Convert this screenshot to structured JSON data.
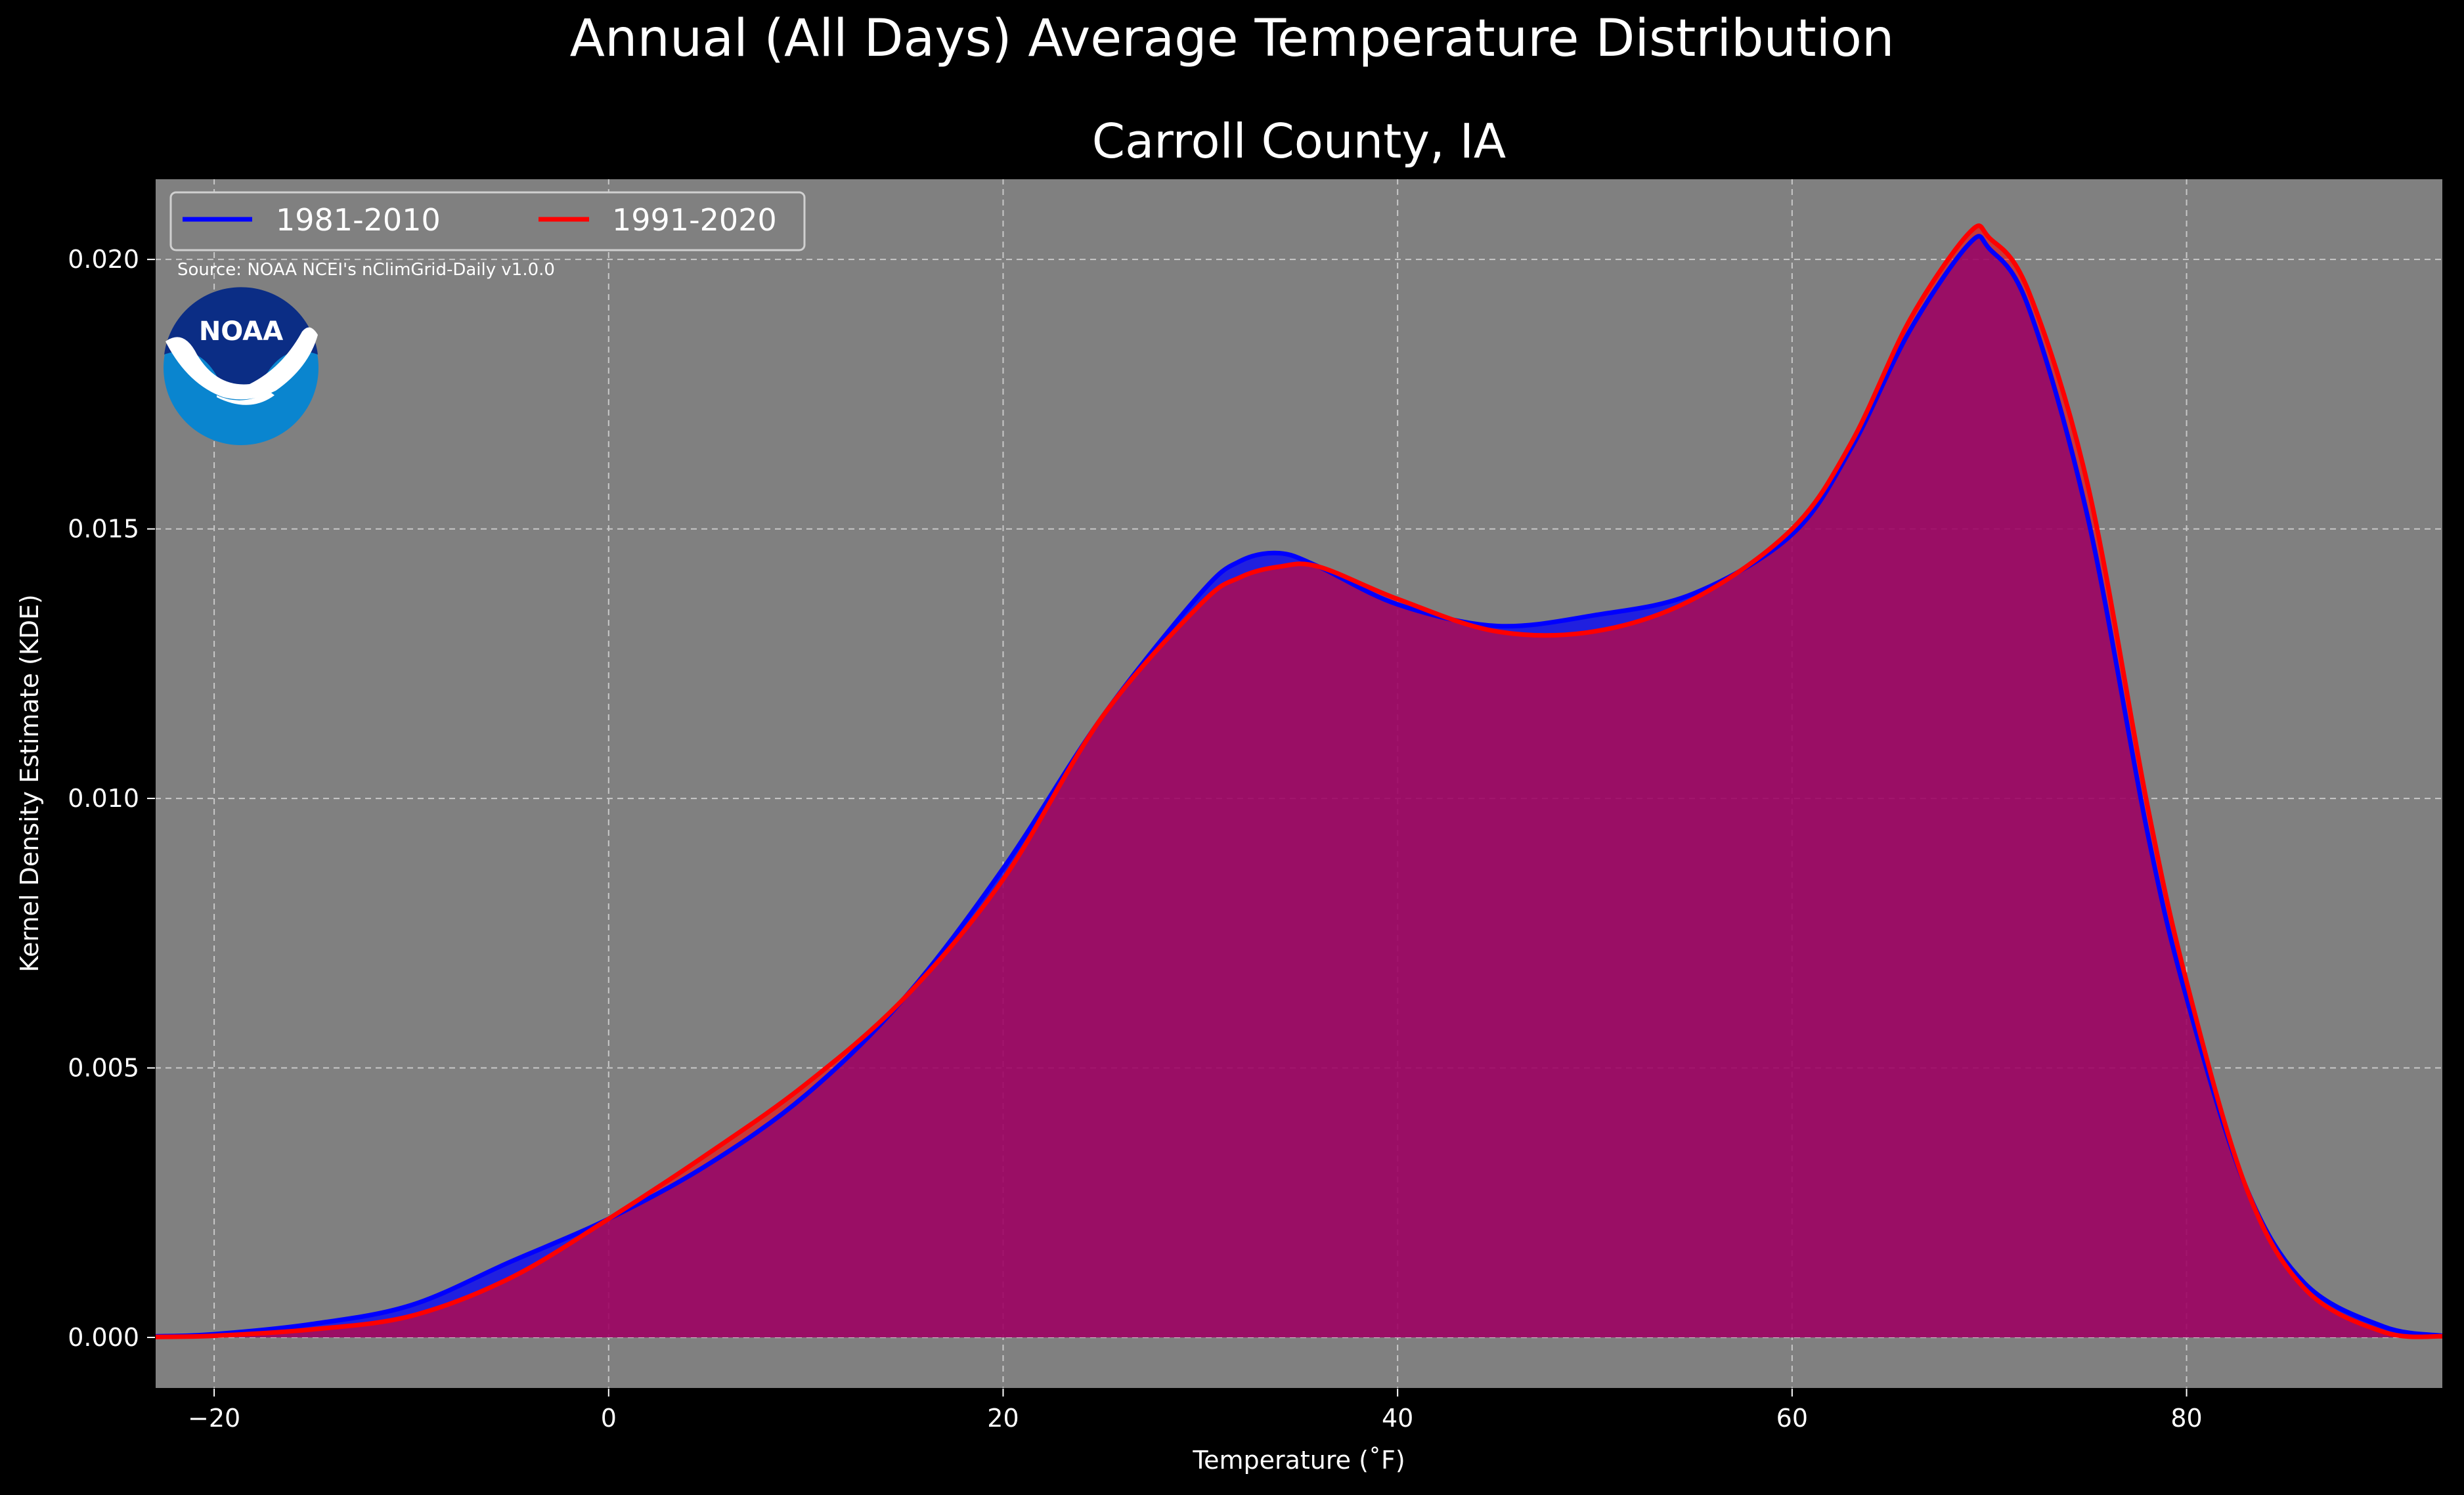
{
  "figure": {
    "title": "Annual (All Days) Average Temperature Distribution"
  },
  "chart_data": {
    "type": "area",
    "title": "Carroll County, IA",
    "xlabel": "Temperature (˚F)",
    "ylabel": "Kernel Density Estimate (KDE)",
    "xlim": [
      -23,
      93
    ],
    "ylim": [
      -0.00095,
      0.0215
    ],
    "xticks": [
      -20,
      0,
      20,
      40,
      60,
      80
    ],
    "xtick_labels": [
      "−20",
      "0",
      "20",
      "40",
      "60",
      "80"
    ],
    "yticks": [
      0.0,
      0.005,
      0.01,
      0.015,
      0.02
    ],
    "ytick_labels": [
      "0.000",
      "0.005",
      "0.010",
      "0.015",
      "0.020"
    ],
    "grid": true,
    "legend_position": "top-left",
    "annotation": "Source: NOAA NCEI's nClimGrid-Daily v1.0.0",
    "colors": {
      "figure_bg": "#000000",
      "axes_bg": "#808080",
      "overlap_fill": "#9e1f5d"
    },
    "series": [
      {
        "name": "1981-2010",
        "color": "#0000ff",
        "x": [
          -23,
          -20,
          -15,
          -10,
          -5,
          0,
          5,
          10,
          15,
          20,
          25,
          30,
          32,
          34,
          36,
          40,
          45,
          50,
          55,
          60,
          63,
          66,
          69,
          70,
          72,
          75,
          78,
          80,
          83,
          86,
          90,
          93
        ],
        "y": [
          2e-05,
          6e-05,
          0.00025,
          0.0006,
          0.0014,
          0.0022,
          0.0032,
          0.0045,
          0.0063,
          0.0087,
          0.0115,
          0.0138,
          0.0144,
          0.01455,
          0.0143,
          0.0136,
          0.0132,
          0.0134,
          0.0138,
          0.0149,
          0.0165,
          0.0187,
          0.0203,
          0.0202,
          0.0191,
          0.0152,
          0.0094,
          0.0063,
          0.0028,
          0.001,
          0.0002,
          3e-05
        ]
      },
      {
        "name": "1991-2020",
        "color": "#ff0000",
        "x": [
          -23,
          -20,
          -15,
          -10,
          -5,
          0,
          5,
          10,
          15,
          20,
          25,
          30,
          32,
          34,
          36,
          40,
          45,
          50,
          55,
          60,
          63,
          66,
          69,
          70,
          72,
          75,
          78,
          80,
          83,
          86,
          90,
          93
        ],
        "y": [
          1e-05,
          3e-05,
          0.00015,
          0.0004,
          0.0011,
          0.0022,
          0.0034,
          0.0047,
          0.0063,
          0.0085,
          0.0115,
          0.0136,
          0.0141,
          0.0143,
          0.0143,
          0.0137,
          0.0131,
          0.0131,
          0.0137,
          0.015,
          0.0166,
          0.0189,
          0.0205,
          0.0204,
          0.0194,
          0.0158,
          0.0099,
          0.0066,
          0.0028,
          0.0009,
          0.0001,
          2e-05
        ]
      }
    ]
  }
}
